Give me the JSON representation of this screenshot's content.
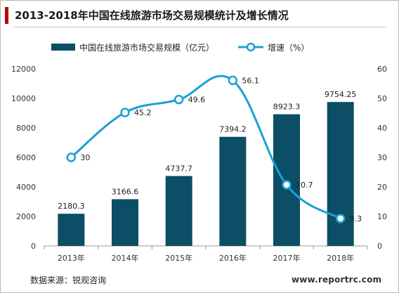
{
  "page": {
    "title": "2013-2018年中国在线旅游市场交易规模统计及增长情况",
    "source": "数据来源：锐观咨询",
    "site": "www.reportrc.com"
  },
  "colors": {
    "bar": "#0b4e66",
    "line": "#1aa0d6",
    "title_accent": "#c00000"
  },
  "chart_data": {
    "type": "bar",
    "categories": [
      "2013年",
      "2014年",
      "2015年",
      "2016年",
      "2017年",
      "2018年"
    ],
    "series": [
      {
        "name": "中国在线旅游市场交易规模（亿元）",
        "type": "bar",
        "axis": "left",
        "values": [
          2180.3,
          3166.6,
          4737.7,
          7394.2,
          8923.3,
          9754.25
        ],
        "labels": [
          "2180.3",
          "3166.6",
          "4737.7",
          "7394.2",
          "8923.3",
          "9754.25"
        ]
      },
      {
        "name": "增速（%）",
        "type": "line",
        "axis": "right",
        "values": [
          30,
          45.2,
          49.6,
          56.1,
          20.7,
          9.3
        ],
        "labels": [
          "30",
          "45.2",
          "49.6",
          "56.1",
          "20.7",
          "9.3"
        ]
      }
    ],
    "y_left": {
      "range": [
        0,
        12000
      ],
      "ticks": [
        "0",
        "2000",
        "4000",
        "6000",
        "8000",
        "10000",
        "12000"
      ]
    },
    "y_right": {
      "range": [
        0,
        60
      ],
      "ticks": [
        "0",
        "10",
        "20",
        "30",
        "40",
        "50",
        "60"
      ]
    },
    "legend": "top",
    "grid": false
  }
}
